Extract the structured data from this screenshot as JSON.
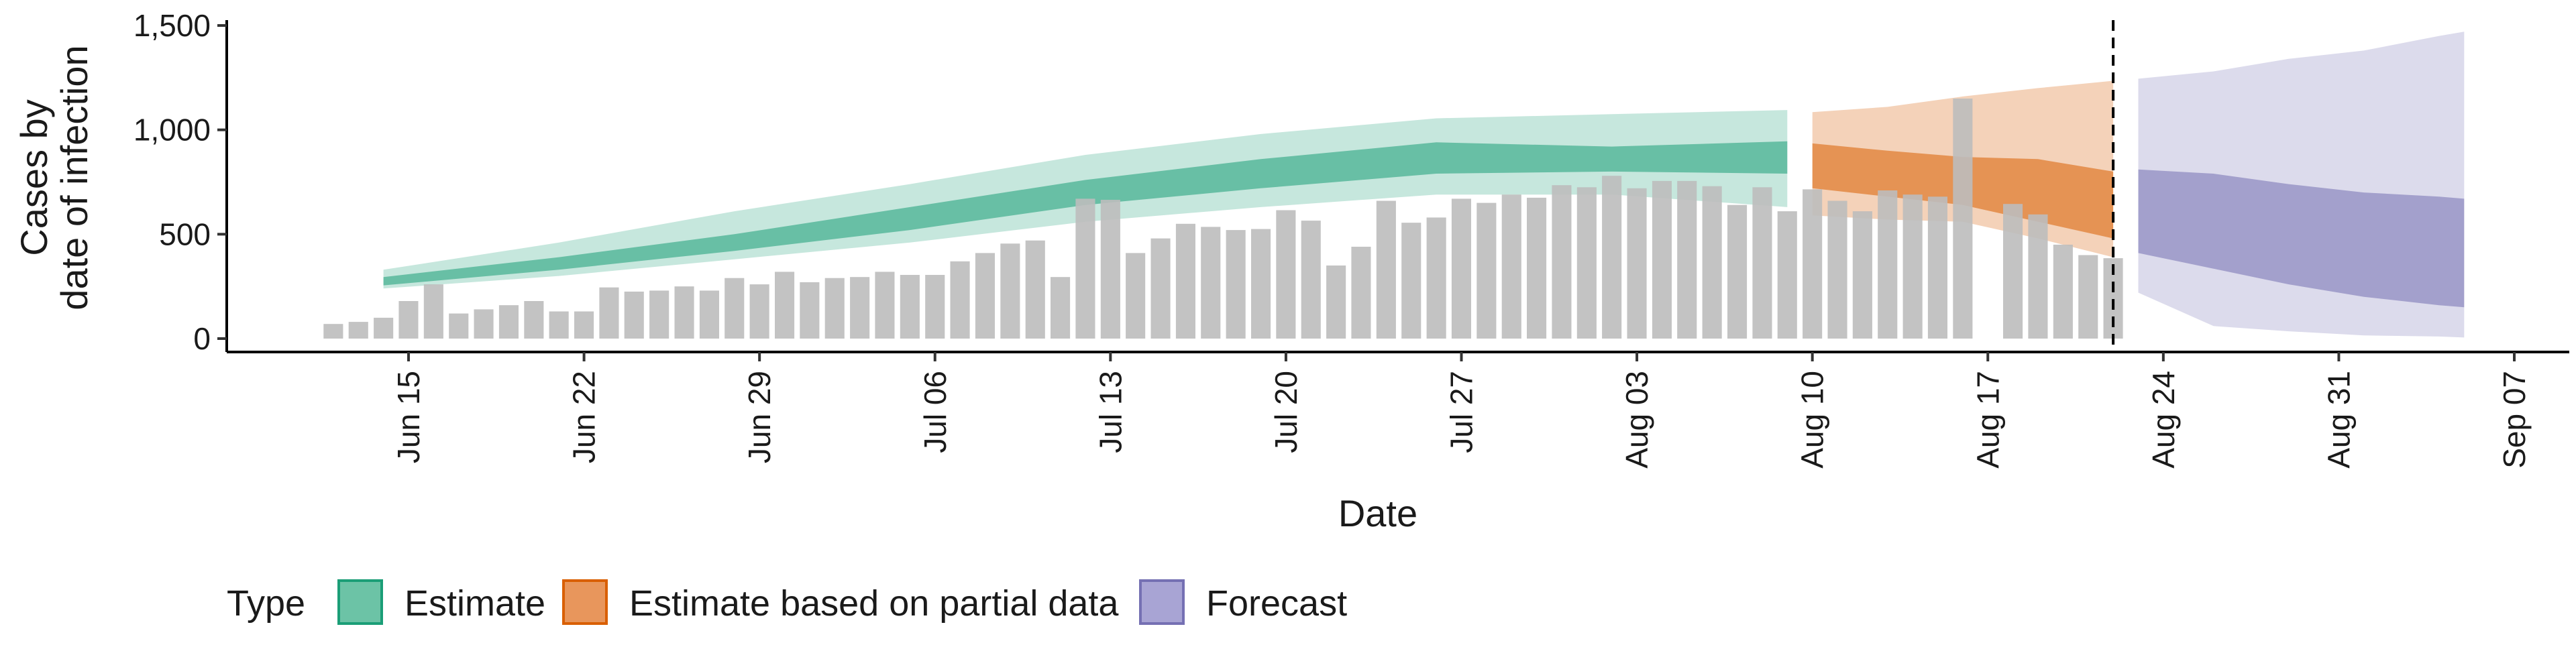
{
  "chart_data": {
    "type": "bar",
    "title": "",
    "xlabel": "Date",
    "ylabel_lines": [
      "Cases by",
      "date of infection"
    ],
    "ylim": [
      0,
      1550
    ],
    "y_ticks": [
      0,
      500,
      1000,
      1500
    ],
    "y_tick_labels": [
      "0",
      "500",
      "1,000",
      "1,500"
    ],
    "x_start_date": "2020-06-11",
    "x_end_date": "2020-09-09",
    "x_ticks": [
      "2020-06-15",
      "2020-06-22",
      "2020-06-29",
      "2020-07-06",
      "2020-07-13",
      "2020-07-20",
      "2020-07-27",
      "2020-08-03",
      "2020-08-10",
      "2020-08-17",
      "2020-08-24",
      "2020-08-31",
      "2020-09-07"
    ],
    "x_tick_labels": [
      "Jun 15",
      "Jun 22",
      "Jun 29",
      "Jul 06",
      "Jul 13",
      "Jul 20",
      "Jul 27",
      "Aug 03",
      "Aug 10",
      "Aug 17",
      "Aug 24",
      "Aug 31",
      "Sep 07"
    ],
    "cutoff_date": "2020-08-22",
    "grid": false,
    "legend_position": "bottom",
    "legend_title": "Type",
    "legend": [
      {
        "label": "Estimate",
        "color": "#1b9e77",
        "fill": "#6cc3a6"
      },
      {
        "label": "Estimate based on partial data",
        "color": "#d95f02",
        "fill": "#e8965c"
      },
      {
        "label": "Forecast",
        "color": "#7570b3",
        "fill": "#a8a4d4"
      }
    ],
    "bars": {
      "color": "#bdbdbd",
      "dates": [
        "2020-06-12",
        "2020-06-13",
        "2020-06-14",
        "2020-06-15",
        "2020-06-16",
        "2020-06-17",
        "2020-06-18",
        "2020-06-19",
        "2020-06-20",
        "2020-06-21",
        "2020-06-22",
        "2020-06-23",
        "2020-06-24",
        "2020-06-25",
        "2020-06-26",
        "2020-06-27",
        "2020-06-28",
        "2020-06-29",
        "2020-06-30",
        "2020-07-01",
        "2020-07-02",
        "2020-07-03",
        "2020-07-04",
        "2020-07-05",
        "2020-07-06",
        "2020-07-07",
        "2020-07-08",
        "2020-07-09",
        "2020-07-10",
        "2020-07-11",
        "2020-07-12",
        "2020-07-13",
        "2020-07-14",
        "2020-07-15",
        "2020-07-16",
        "2020-07-17",
        "2020-07-18",
        "2020-07-19",
        "2020-07-20",
        "2020-07-21",
        "2020-07-22",
        "2020-07-23",
        "2020-07-24",
        "2020-07-25",
        "2020-07-26",
        "2020-07-27",
        "2020-07-28",
        "2020-07-29",
        "2020-07-30",
        "2020-07-31",
        "2020-08-01",
        "2020-08-02",
        "2020-08-03",
        "2020-08-04",
        "2020-08-05",
        "2020-08-06",
        "2020-08-07",
        "2020-08-08",
        "2020-08-09",
        "2020-08-10",
        "2020-08-11",
        "2020-08-12",
        "2020-08-13",
        "2020-08-14",
        "2020-08-15",
        "2020-08-16",
        "2020-08-18",
        "2020-08-19",
        "2020-08-20",
        "2020-08-21",
        "2020-08-22"
      ],
      "values": [
        70,
        80,
        100,
        180,
        260,
        120,
        140,
        160,
        180,
        130,
        130,
        245,
        225,
        230,
        250,
        230,
        290,
        260,
        320,
        270,
        290,
        295,
        320,
        305,
        305,
        370,
        410,
        455,
        470,
        295,
        670,
        665,
        410,
        480,
        550,
        535,
        520,
        525,
        615,
        565,
        350,
        440,
        660,
        555,
        580,
        670,
        650,
        690,
        675,
        735,
        725,
        780,
        720,
        755,
        755,
        730,
        640,
        725,
        610,
        715,
        660,
        610,
        710,
        690,
        680,
        1150,
        645,
        595,
        450,
        400,
        385
      ]
    },
    "estimate": {
      "dates": [
        "2020-06-14",
        "2020-06-21",
        "2020-06-28",
        "2020-07-05",
        "2020-07-12",
        "2020-07-19",
        "2020-07-26",
        "2020-08-02",
        "2020-08-09"
      ],
      "lower_90": [
        240,
        300,
        380,
        460,
        560,
        630,
        690,
        690,
        630
      ],
      "lower_50": [
        255,
        330,
        420,
        520,
        640,
        720,
        790,
        800,
        790
      ],
      "upper_50": [
        295,
        390,
        500,
        630,
        760,
        860,
        940,
        920,
        945
      ],
      "upper_90": [
        330,
        460,
        610,
        740,
        880,
        980,
        1055,
        1075,
        1095
      ]
    },
    "partial": {
      "dates": [
        "2020-08-10",
        "2020-08-13",
        "2020-08-16",
        "2020-08-19",
        "2020-08-22"
      ],
      "lower_90": [
        590,
        570,
        560,
        480,
        390
      ],
      "lower_50": [
        720,
        680,
        640,
        560,
        480
      ],
      "upper_50": [
        935,
        900,
        870,
        860,
        800
      ],
      "upper_90": [
        1085,
        1110,
        1160,
        1200,
        1235
      ]
    },
    "forecast": {
      "dates": [
        "2020-08-23",
        "2020-08-26",
        "2020-08-29",
        "2020-09-01",
        "2020-09-04",
        "2020-09-05"
      ],
      "lower_90": [
        220,
        60,
        35,
        15,
        10,
        5
      ],
      "lower_50": [
        410,
        335,
        260,
        200,
        160,
        150
      ],
      "upper_50": [
        810,
        790,
        740,
        700,
        680,
        670
      ],
      "upper_90": [
        1245,
        1280,
        1340,
        1380,
        1450,
        1470
      ]
    }
  }
}
